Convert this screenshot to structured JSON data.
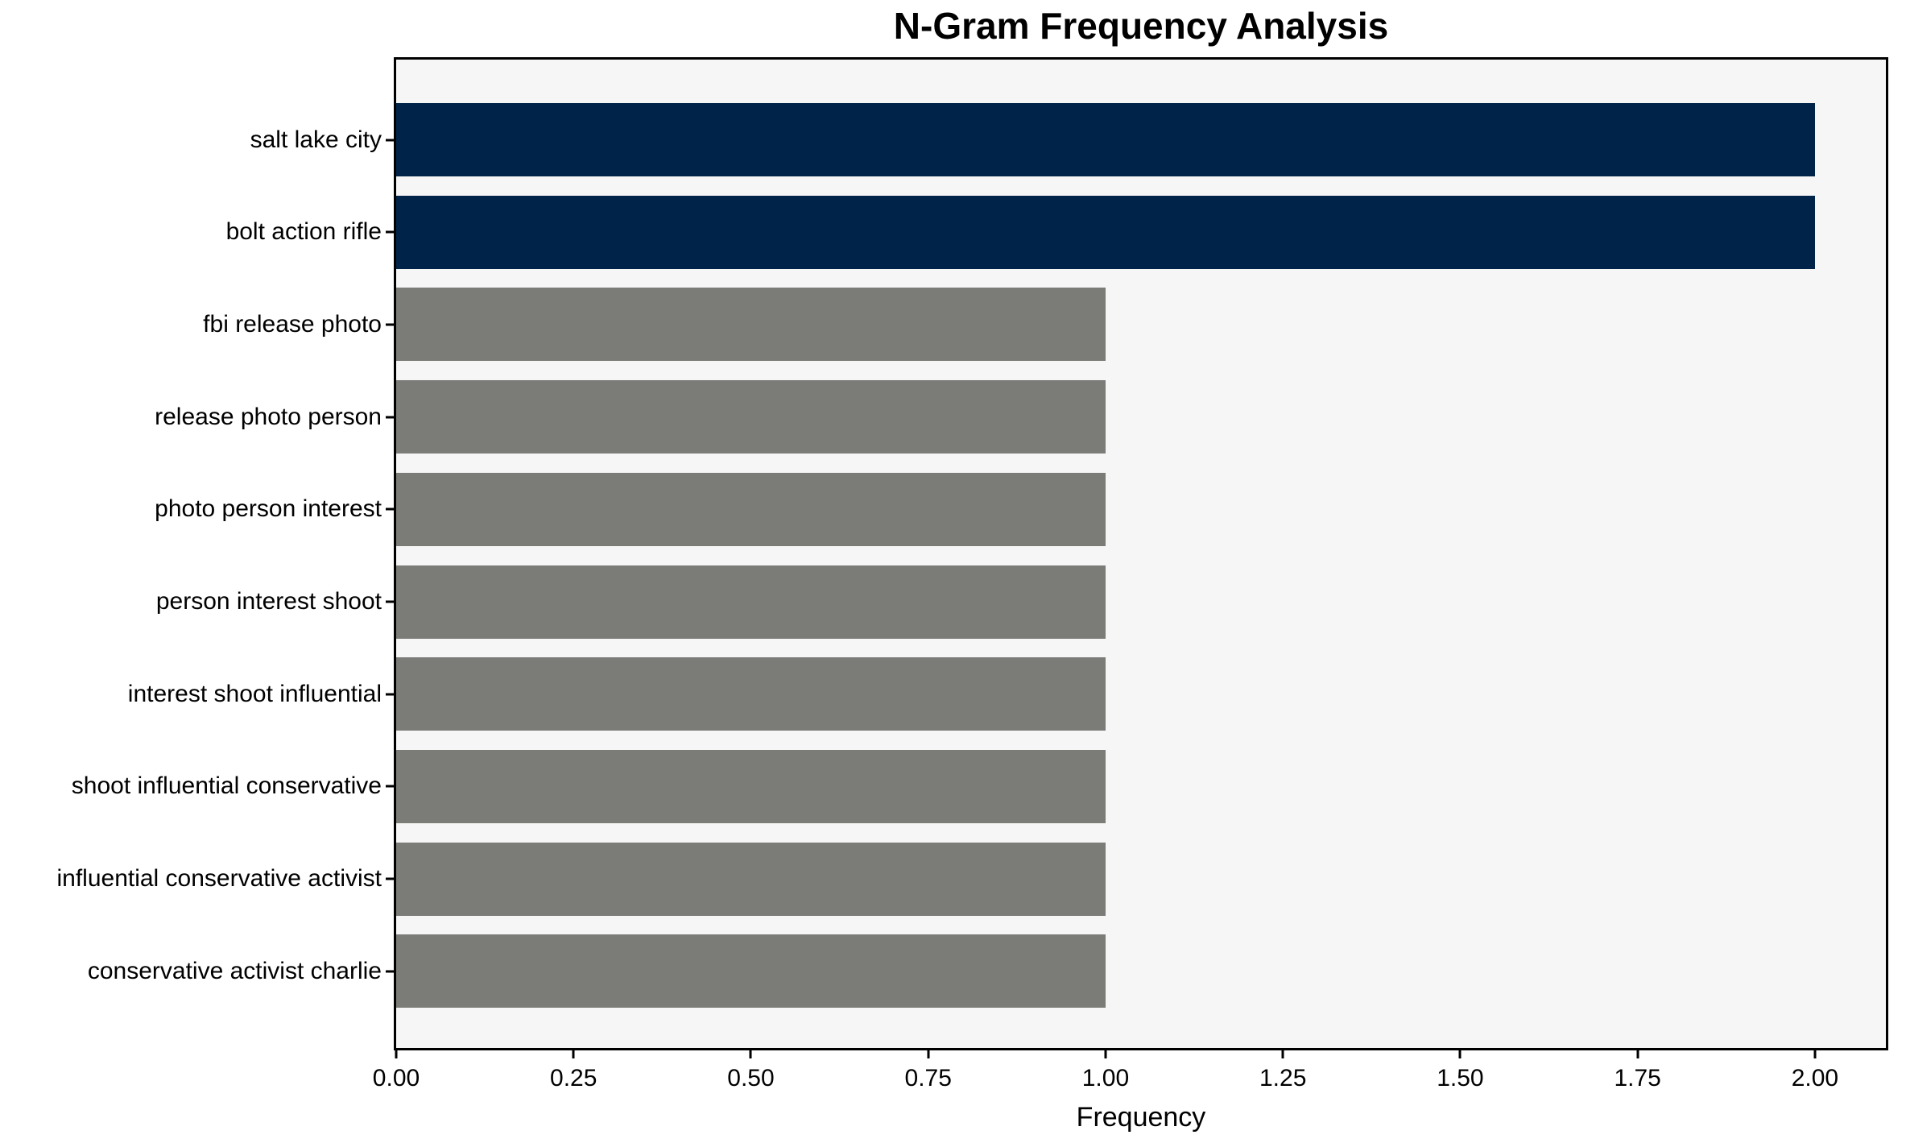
{
  "title": "N-Gram Frequency Analysis",
  "x_axis_label": "Frequency",
  "colors": {
    "highlight": "#002449",
    "default": "#7b7b78",
    "plot_background": "#f7f6f6",
    "spine": "#000000",
    "figure_background": "#ffffff"
  },
  "chart_data": {
    "type": "bar",
    "orientation": "horizontal",
    "title": "N-Gram Frequency Analysis",
    "xlabel": "Frequency",
    "ylabel": "",
    "categories": [
      "salt lake city",
      "bolt action rifle",
      "fbi release photo",
      "release photo person",
      "photo person interest",
      "person interest shoot",
      "interest shoot influential",
      "shoot influential conservative",
      "influential conservative activist",
      "conservative activist charlie"
    ],
    "values": [
      2,
      2,
      1,
      1,
      1,
      1,
      1,
      1,
      1,
      1
    ],
    "bar_colors": [
      "#002449",
      "#002449",
      "#7b7b78",
      "#7b7b78",
      "#7b7b78",
      "#7b7b78",
      "#7b7b78",
      "#7b7b78",
      "#7b7b78",
      "#7b7b78"
    ],
    "xlim": [
      0,
      2.1
    ],
    "x_ticks": [
      {
        "value": 0.0,
        "label": "0.00"
      },
      {
        "value": 0.25,
        "label": "0.25"
      },
      {
        "value": 0.5,
        "label": "0.50"
      },
      {
        "value": 0.75,
        "label": "0.75"
      },
      {
        "value": 1.0,
        "label": "1.00"
      },
      {
        "value": 1.25,
        "label": "1.25"
      },
      {
        "value": 1.5,
        "label": "1.50"
      },
      {
        "value": 1.75,
        "label": "1.75"
      },
      {
        "value": 2.0,
        "label": "2.00"
      }
    ],
    "grid": false,
    "legend_position": "none"
  }
}
